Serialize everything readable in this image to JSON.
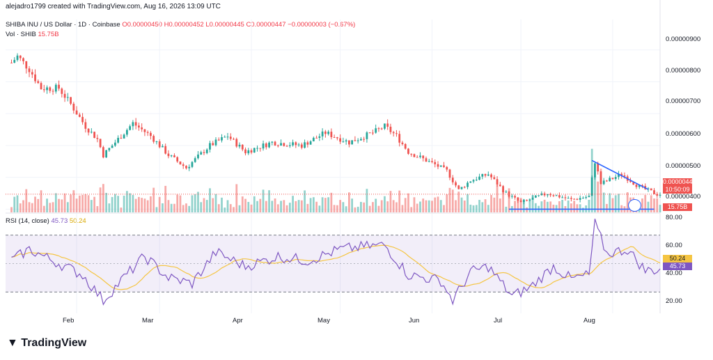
{
  "header": {
    "text": "alejadro1799 created with TradingView.com, Aug 16, 2026 13:09 UTC"
  },
  "legend": {
    "symbol": "SHIBA INU / US Dollar · 1D · Coinbase",
    "open": "O0.00000450",
    "high": "H0.00000452",
    "low": "L0.00000445",
    "close": "C0.00000447",
    "change": "−0.00000003 (−0.67%)",
    "vol_label": "Vol · SHIB",
    "vol_value": "15.75B"
  },
  "rsi_legend": {
    "label": "RSI (14, close)",
    "rsi": "45.73",
    "ma": "50.24"
  },
  "price_axis": [
    "0.00000900",
    "0.00000800",
    "0.00000700",
    "0.00000600",
    "0.00000500",
    "0.00000400"
  ],
  "rsi_axis": [
    "80.00",
    "60.00",
    "40.00",
    "20.00"
  ],
  "time_axis": [
    "Feb",
    "Mar",
    "Apr",
    "May",
    "Jun",
    "Jul",
    "Aug"
  ],
  "tags": {
    "price": "0.00000447",
    "countdown": "10:50:09",
    "volume": "15.75B",
    "rsi": "45.73",
    "rsi_ma": "50.24"
  },
  "brand": "TradingView",
  "colors": {
    "up": "#26a69a",
    "down": "#ef5350",
    "rsi": "#7e57c2",
    "rsi_ma": "#f5c542",
    "trend": "#2962ff"
  },
  "chart_data": {
    "type": "candlestick",
    "price_range": [
      3.9e-06,
      9.3e-06
    ],
    "rsi_range": [
      15,
      85
    ],
    "rsi_bands": [
      30,
      70
    ],
    "trendlines": [
      {
        "from": [
          "2026-07-25",
          5.53e-06
        ],
        "to": [
          "2026-08-13",
          4.62e-06
        ]
      },
      {
        "from": [
          "2026-06-27",
          4e-06
        ],
        "to": [
          "2026-08-15",
          4e-06
        ]
      }
    ],
    "anchors": [
      [
        "2026-01-10",
        8.6e-06
      ],
      [
        "2026-01-12",
        8.8e-06
      ],
      [
        "2026-01-16",
        8.4e-06
      ],
      [
        "2026-01-20",
        7.8e-06
      ],
      [
        "2026-01-26",
        7.8e-06
      ],
      [
        "2026-01-30",
        7.3e-06
      ],
      [
        "2026-02-04",
        6.6e-06
      ],
      [
        "2026-02-08",
        6.2e-06
      ],
      [
        "2026-02-10",
        5.7e-06
      ],
      [
        "2026-02-14",
        6.1e-06
      ],
      [
        "2026-02-20",
        6.7e-06
      ],
      [
        "2026-02-26",
        6.3e-06
      ],
      [
        "2026-03-04",
        5.7e-06
      ],
      [
        "2026-03-10",
        5.3e-06
      ],
      [
        "2026-03-18",
        6e-06
      ],
      [
        "2026-03-24",
        6.3e-06
      ],
      [
        "2026-03-30",
        5.8e-06
      ],
      [
        "2026-04-08",
        6.1e-06
      ],
      [
        "2026-04-18",
        6e-06
      ],
      [
        "2026-04-26",
        6.4e-06
      ],
      [
        "2026-05-04",
        6.1e-06
      ],
      [
        "2026-05-12",
        6.4e-06
      ],
      [
        "2026-05-16",
        6.6e-06
      ],
      [
        "2026-05-20",
        6.3e-06
      ],
      [
        "2026-05-24",
        5.8e-06
      ],
      [
        "2026-06-02",
        5.4e-06
      ],
      [
        "2026-06-06",
        5.2e-06
      ],
      [
        "2026-06-10",
        4.6e-06
      ],
      [
        "2026-06-14",
        4.9e-06
      ],
      [
        "2026-06-20",
        5.1e-06
      ],
      [
        "2026-06-26",
        4.5e-06
      ],
      [
        "2026-07-01",
        4.2e-06
      ],
      [
        "2026-07-10",
        4.5e-06
      ],
      [
        "2026-07-18",
        4.3e-06
      ],
      [
        "2026-07-24",
        4.4e-06
      ],
      [
        "2026-07-26",
        5.5e-06
      ],
      [
        "2026-07-28",
        4.8e-06
      ],
      [
        "2026-08-04",
        5.1e-06
      ],
      [
        "2026-08-10",
        4.7e-06
      ],
      [
        "2026-08-16",
        4.47e-06
      ]
    ],
    "rsi_anchors": [
      [
        "2026-01-10",
        52
      ],
      [
        "2026-01-16",
        60
      ],
      [
        "2026-01-26",
        50
      ],
      [
        "2026-02-03",
        42
      ],
      [
        "2026-02-10",
        24
      ],
      [
        "2026-02-16",
        38
      ],
      [
        "2026-02-24",
        55
      ],
      [
        "2026-03-04",
        40
      ],
      [
        "2026-03-12",
        36
      ],
      [
        "2026-03-20",
        58
      ],
      [
        "2026-03-30",
        48
      ],
      [
        "2026-04-10",
        55
      ],
      [
        "2026-04-20",
        52
      ],
      [
        "2026-05-01",
        60
      ],
      [
        "2026-05-10",
        62
      ],
      [
        "2026-05-16",
        63
      ],
      [
        "2026-05-24",
        42
      ],
      [
        "2026-06-04",
        38
      ],
      [
        "2026-06-08",
        24
      ],
      [
        "2026-06-14",
        44
      ],
      [
        "2026-06-20",
        48
      ],
      [
        "2026-06-28",
        27
      ],
      [
        "2026-07-04",
        33
      ],
      [
        "2026-07-12",
        48
      ],
      [
        "2026-07-18",
        39
      ],
      [
        "2026-07-24",
        42
      ],
      [
        "2026-07-26",
        78
      ],
      [
        "2026-07-30",
        57
      ],
      [
        "2026-08-06",
        60
      ],
      [
        "2026-08-12",
        45
      ],
      [
        "2026-08-16",
        45.73
      ]
    ]
  }
}
